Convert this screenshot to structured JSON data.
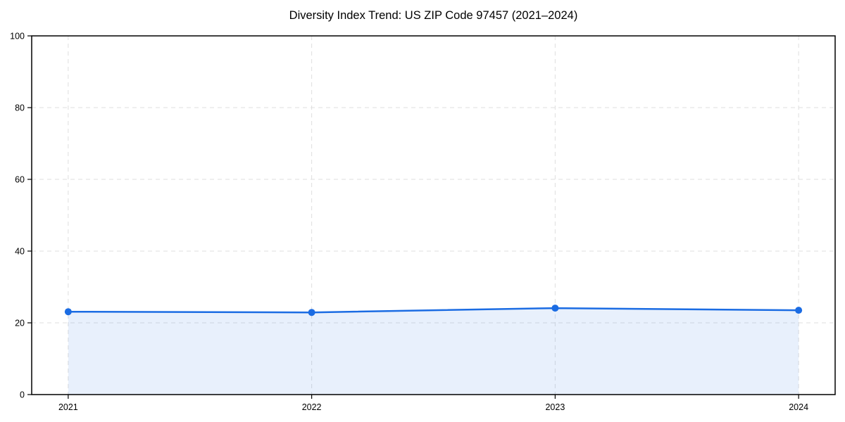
{
  "page": {
    "background_color": "#ffffff"
  },
  "chart_data": {
    "type": "area",
    "title": "Diversity Index Trend: US ZIP Code 97457 (2021–2024)",
    "categories": [
      "2021",
      "2022",
      "2023",
      "2024"
    ],
    "values": [
      23.1,
      22.9,
      24.1,
      23.5
    ],
    "series_name": "Diversity Index",
    "xlabel": "",
    "ylabel": "",
    "ylim": [
      0,
      100
    ],
    "yticks": [
      0,
      20,
      40,
      60,
      80,
      100
    ],
    "grid": "dashed, horizontal at yticks and vertical at each category",
    "legend_position": "none",
    "line_color": "#1b6ce3",
    "fill_color": "rgba(27,108,227,0.10)",
    "grid_color": "#dfdfdf",
    "axis_color": "#000000",
    "marker": "circle"
  }
}
